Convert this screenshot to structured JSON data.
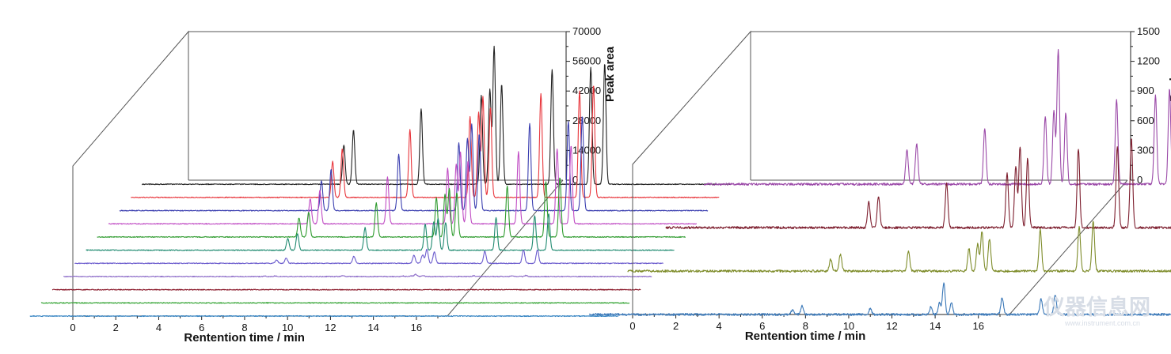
{
  "chart_data": [
    {
      "type": "line",
      "layout": "3d-waterfall",
      "xlabel": "Rentention time / min",
      "ylabel": "Peak area",
      "xlim": [
        0,
        17
      ],
      "xticks": [
        0,
        2,
        4,
        6,
        8,
        10,
        12,
        14,
        16
      ],
      "ylim": [
        0,
        70000
      ],
      "yticks": [
        0,
        14000,
        28000,
        42000,
        56000,
        70000
      ],
      "peak_times": [
        7.4,
        7.85,
        11.0,
        13.8,
        14.2,
        14.4,
        14.75,
        17.1,
        18.9,
        19.55
      ],
      "series": [
        {
          "color": "#2d7fc0",
          "peaks": [
            10,
            20,
            0,
            0,
            0,
            0,
            10,
            0,
            0,
            0
          ]
        },
        {
          "color": "#2ca02c",
          "peaks": [
            10,
            10,
            0,
            10,
            0,
            0,
            10,
            0,
            0,
            0
          ]
        },
        {
          "color": "#8b1a2b",
          "peaks": [
            20,
            20,
            40,
            20,
            0,
            40,
            20,
            20,
            20,
            20
          ]
        },
        {
          "color": "#8c6bc8",
          "peaks": [
            200,
            300,
            500,
            300,
            300,
            1100,
            400,
            400,
            400,
            500
          ]
        },
        {
          "color": "#6a5acd",
          "peaks": [
            1700,
            2600,
            3400,
            3800,
            4000,
            6700,
            5500,
            5800,
            6300,
            6400
          ]
        },
        {
          "color": "#1f8a70",
          "peaks": [
            5500,
            7800,
            10600,
            12100,
            13300,
            15000,
            13100,
            15400,
            16100,
            17100
          ]
        },
        {
          "color": "#2e9b2e",
          "peaks": [
            9000,
            11800,
            16000,
            18500,
            20000,
            23000,
            21000,
            24000,
            26000,
            28000
          ]
        },
        {
          "color": "#c04cc4",
          "peaks": [
            11700,
            15900,
            22000,
            26100,
            28200,
            33600,
            29800,
            33900,
            35300,
            37000
          ]
        },
        {
          "color": "#3b3fb0",
          "peaks": [
            14200,
            19400,
            26500,
            32000,
            34000,
            40700,
            36300,
            41200,
            42100,
            44800
          ]
        },
        {
          "color": "#e8363c",
          "peaks": [
            17000,
            23000,
            32000,
            38000,
            40000,
            47500,
            42500,
            49000,
            50000,
            53000
          ]
        },
        {
          "color": "#222222",
          "peaks": [
            18500,
            25500,
            35500,
            42000,
            44500,
            65000,
            47000,
            54000,
            55000,
            57000
          ]
        }
      ]
    },
    {
      "type": "line",
      "layout": "3d-waterfall",
      "xlabel": "Rentention time / min",
      "ylabel": "Peak area",
      "xlim": [
        0,
        17
      ],
      "xticks": [
        0,
        2,
        4,
        6,
        8,
        10,
        12,
        14,
        16
      ],
      "ylim": [
        0,
        1500
      ],
      "yticks": [
        0,
        300,
        600,
        900,
        1200,
        1500
      ],
      "peak_times": [
        7.4,
        7.85,
        11.0,
        13.8,
        14.2,
        14.4,
        14.75,
        17.1,
        18.9,
        19.55
      ],
      "series": [
        {
          "color": "#3a78b8",
          "peaks": [
            45,
            85,
            60,
            75,
            120,
            320,
            125,
            165,
            155,
            200
          ]
        },
        {
          "color": "#7e8c2a",
          "peaks": [
            120,
            170,
            200,
            230,
            270,
            400,
            330,
            420,
            450,
            510
          ]
        },
        {
          "color": "#7d1e2e",
          "peaks": [
            260,
            320,
            450,
            550,
            620,
            820,
            700,
            800,
            820,
            900
          ]
        },
        {
          "color": "#9b4aa8",
          "peaks": [
            350,
            410,
            560,
            690,
            740,
            1350,
            720,
            860,
            910,
            960
          ]
        }
      ]
    }
  ],
  "watermark": {
    "text": "仪器信息网",
    "url": "www.instrument.com.cn"
  }
}
